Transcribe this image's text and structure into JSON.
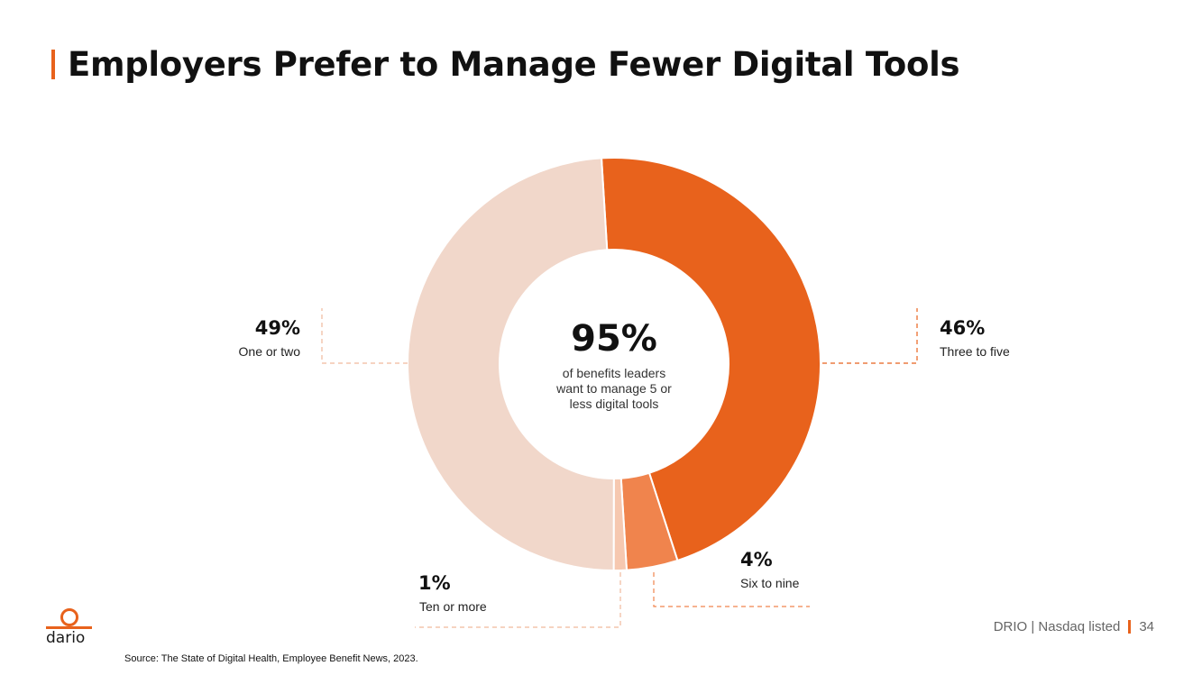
{
  "title": "Employers Prefer to Manage Fewer Digital Tools",
  "accent_color": "#e8621c",
  "chart_data": {
    "type": "pie",
    "variant": "donut",
    "segments": [
      {
        "label": "Three to five",
        "value": 46,
        "display": "46%",
        "color": "#e8621c"
      },
      {
        "label": "Six to nine",
        "value": 4,
        "display": "4%",
        "color": "#f0844d"
      },
      {
        "label": "Ten or more",
        "value": 1,
        "display": "1%",
        "color": "#f6c8b0"
      },
      {
        "label": "One or two",
        "value": 49,
        "display": "49%",
        "color": "#f1d7ca"
      }
    ],
    "center": {
      "value": "95%",
      "lines": [
        "of benefits leaders",
        "want to manage 5 or",
        "less digital tools"
      ]
    }
  },
  "logo": {
    "text": "dario",
    "icon": "dario-logo-icon"
  },
  "footer": {
    "company": "DRIO | Nasdaq listed",
    "page_number": "34"
  },
  "source": "Source: The State of Digital Health, Employee Benefit News, 2023."
}
